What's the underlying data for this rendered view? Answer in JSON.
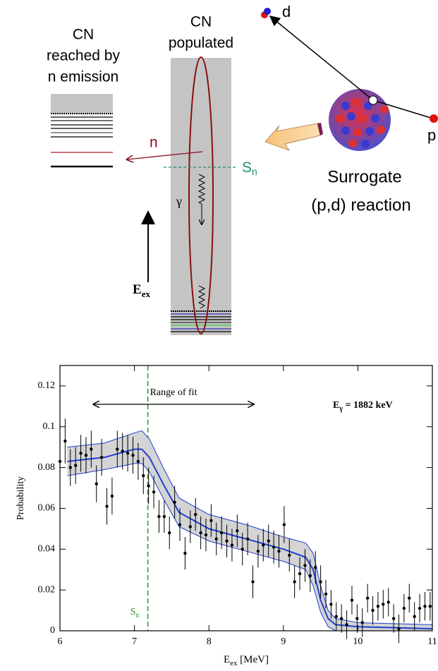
{
  "diagram": {
    "left_title": [
      "CN",
      "reached by",
      "n emission"
    ],
    "center_title": [
      "CN",
      "populated"
    ],
    "neutron": "n",
    "separation": {
      "main": "S",
      "sub": "n"
    },
    "gamma": "γ",
    "excitation": {
      "main": "E",
      "sub": "ex"
    },
    "surrogate": [
      "Surrogate",
      "(p,d) reaction"
    ],
    "deuteron": "d",
    "proton": "p"
  },
  "chart_data": {
    "type": "scatter",
    "y_label": "Probability",
    "x_label": {
      "main": "E",
      "sub": "ex",
      "unit": " [MeV]"
    },
    "annotation": {
      "main": "E",
      "sub": "γ",
      "rest": " = 1882 keV"
    },
    "fit_range_label": "Range of fit",
    "fit_range": [
      6.45,
      8.6
    ],
    "sn_label": {
      "main": "S",
      "sub": "n"
    },
    "sn": 7.18,
    "sn_color": "#2e9a2e",
    "xlim": [
      6,
      11
    ],
    "xticks": [
      6,
      7,
      8,
      9,
      10,
      11
    ],
    "ylim": [
      0,
      0.13
    ],
    "yticks": [
      0,
      0.02,
      0.04,
      0.06,
      0.08,
      0.1,
      0.12
    ],
    "color": "#000000",
    "x": [
      6.0,
      6.07,
      6.14,
      6.21,
      6.28,
      6.35,
      6.42,
      6.49,
      6.56,
      6.63,
      6.7,
      6.77,
      6.84,
      6.91,
      6.98,
      7.05,
      7.12,
      7.19,
      7.26,
      7.33,
      7.4,
      7.47,
      7.54,
      7.61,
      7.68,
      7.75,
      7.82,
      7.89,
      7.96,
      8.03,
      8.1,
      8.17,
      8.24,
      8.31,
      8.38,
      8.45,
      8.52,
      8.59,
      8.66,
      8.73,
      8.8,
      8.87,
      8.94,
      9.01,
      9.08,
      9.15,
      9.22,
      9.29,
      9.36,
      9.43,
      9.5,
      9.57,
      9.64,
      9.71,
      9.78,
      9.85,
      9.92,
      9.99,
      10.06,
      10.13,
      10.2,
      10.27,
      10.34,
      10.41,
      10.48,
      10.55,
      10.62,
      10.69,
      10.76,
      10.83,
      10.9,
      10.97
    ],
    "values": [
      0.083,
      0.093,
      0.08,
      0.081,
      0.087,
      0.086,
      0.089,
      0.072,
      0.085,
      0.061,
      0.066,
      0.089,
      0.088,
      0.087,
      0.086,
      0.083,
      0.076,
      0.071,
      0.068,
      0.056,
      0.056,
      0.048,
      0.063,
      0.052,
      0.038,
      0.051,
      0.057,
      0.048,
      0.047,
      0.054,
      0.045,
      0.048,
      0.044,
      0.042,
      0.049,
      0.04,
      0.045,
      0.024,
      0.039,
      0.042,
      0.044,
      0.041,
      0.039,
      0.052,
      0.037,
      0.024,
      0.028,
      0.032,
      0.027,
      0.031,
      0.024,
      0.018,
      0.013,
      0.007,
      0.006,
      0.003,
      0.015,
      0.006,
      0.004,
      0.016,
      0.01,
      0.012,
      0.013,
      0.014,
      0.006,
      0.001,
      0.011,
      0.016,
      0.007,
      0.011,
      0.012,
      0.012
    ],
    "errors": [
      0.009,
      0.011,
      0.009,
      0.009,
      0.009,
      0.009,
      0.009,
      0.009,
      0.009,
      0.009,
      0.009,
      0.009,
      0.009,
      0.009,
      0.009,
      0.009,
      0.009,
      0.009,
      0.008,
      0.008,
      0.008,
      0.008,
      0.008,
      0.008,
      0.008,
      0.008,
      0.008,
      0.008,
      0.008,
      0.008,
      0.008,
      0.008,
      0.008,
      0.008,
      0.008,
      0.008,
      0.008,
      0.008,
      0.008,
      0.008,
      0.008,
      0.008,
      0.008,
      0.009,
      0.008,
      0.008,
      0.008,
      0.008,
      0.008,
      0.008,
      0.008,
      0.007,
      0.007,
      0.007,
      0.007,
      0.007,
      0.007,
      0.007,
      0.007,
      0.007,
      0.007,
      0.007,
      0.007,
      0.007,
      0.007,
      0.007,
      0.007,
      0.007,
      0.007,
      0.007,
      0.007,
      0.007
    ],
    "fit": {
      "color": "#1f3fd0",
      "band_color": "#d4d4d4",
      "x": [
        6.1,
        6.6,
        7.0,
        7.1,
        7.2,
        7.4,
        7.6,
        8.0,
        8.5,
        9.0,
        9.3,
        9.4,
        9.5,
        9.6,
        9.7,
        10.0,
        11.0
      ],
      "values": [
        0.083,
        0.085,
        0.089,
        0.089,
        0.085,
        0.071,
        0.058,
        0.05,
        0.045,
        0.04,
        0.036,
        0.03,
        0.015,
        0.006,
        0.003,
        0.002,
        0.001
      ],
      "upper": [
        0.09,
        0.092,
        0.097,
        0.098,
        0.094,
        0.079,
        0.065,
        0.057,
        0.052,
        0.046,
        0.043,
        0.038,
        0.022,
        0.01,
        0.006,
        0.004,
        0.003
      ],
      "lower": [
        0.076,
        0.079,
        0.082,
        0.082,
        0.078,
        0.064,
        0.051,
        0.044,
        0.039,
        0.034,
        0.03,
        0.022,
        0.009,
        0.002,
        0.0,
        0.0,
        0.0
      ]
    }
  }
}
